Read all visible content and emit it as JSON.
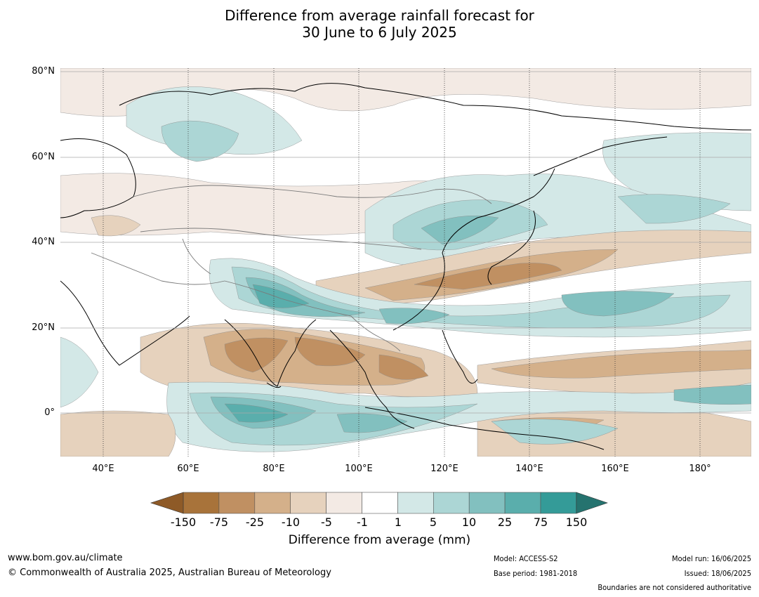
{
  "title": {
    "line1": "Difference from average rainfall forecast for",
    "line2": "30 June to 6 July 2025"
  },
  "map": {
    "lat_labels": [
      "80°N",
      "60°N",
      "40°N",
      "20°N",
      "0°"
    ],
    "lon_labels": [
      "40°E",
      "60°E",
      "80°E",
      "100°E",
      "120°E",
      "140°E",
      "160°E",
      "180°"
    ],
    "colors": {
      "brown_strong": "#a8733a",
      "brown_mid": "#c09062",
      "brown_light": "#d4b08a",
      "tan": "#e6d2bd",
      "tan_light": "#f3eae4",
      "teal_lightest": "#d3e8e7",
      "teal_light": "#acd6d5",
      "teal_mid": "#82c0bf",
      "teal": "#5aaeac",
      "teal_strong": "#349b98",
      "gridline": "#aaaaaa",
      "coastline": "#000000",
      "border": "#7a7a7a"
    }
  },
  "colorbar": {
    "labels": [
      "-150",
      "-75",
      "-25",
      "-10",
      "-5",
      "-1",
      "1",
      "5",
      "10",
      "25",
      "75",
      "150"
    ],
    "colors": [
      "#a8733a",
      "#c09062",
      "#d4b08a",
      "#e6d2bd",
      "#f3eae4",
      "#ffffff",
      "#d3e8e7",
      "#acd6d5",
      "#82c0bf",
      "#5aaeac",
      "#349b98"
    ],
    "under_color": "#8e5a27",
    "over_color": "#25736f",
    "title": "Difference from average (mm)"
  },
  "footer": {
    "url": "www.bom.gov.au/climate",
    "copyright": "© Commonwealth of Australia 2025, Australian Bureau of Meteorology",
    "model": "Model: ACCESS-S2",
    "base_period": "Base period: 1981-2018",
    "model_run": "Model run: 16/06/2025",
    "issued": "Issued: 18/06/2025",
    "disclaimer": "Boundaries are not considered authoritative"
  }
}
